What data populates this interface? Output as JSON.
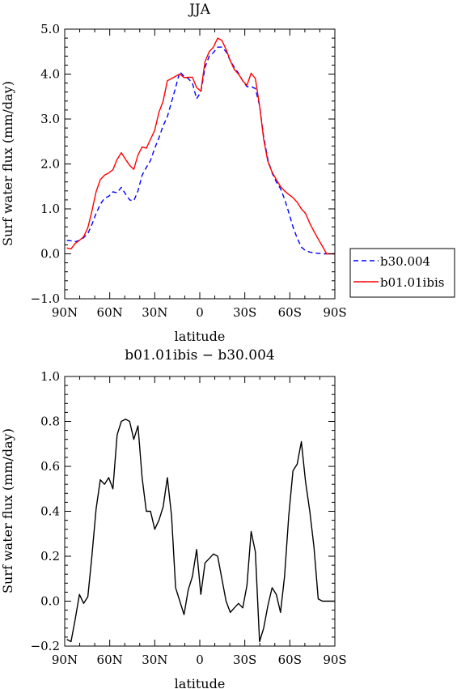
{
  "chart_data": [
    {
      "type": "line",
      "title": "JJA",
      "xlabel": "latitude",
      "ylabel": "Surf water flux (mm/day)",
      "xlim": [
        -90,
        90
      ],
      "ylim": [
        -1.0,
        5.0
      ],
      "x_ticks": [
        {
          "value": -90,
          "label": "90N"
        },
        {
          "value": -60,
          "label": "60N"
        },
        {
          "value": -30,
          "label": "30N"
        },
        {
          "value": 0,
          "label": "0"
        },
        {
          "value": 30,
          "label": "30S"
        },
        {
          "value": 60,
          "label": "60S"
        },
        {
          "value": 90,
          "label": "90S"
        }
      ],
      "y_ticks": [
        {
          "value": -1.0,
          "label": "−1.0"
        },
        {
          "value": 0.0,
          "label": "0.0"
        },
        {
          "value": 1.0,
          "label": "1.0"
        },
        {
          "value": 2.0,
          "label": "2.0"
        },
        {
          "value": 3.0,
          "label": "3.0"
        },
        {
          "value": 4.0,
          "label": "4.0"
        },
        {
          "value": 5.0,
          "label": "5.0"
        }
      ],
      "legend_position": "right",
      "series": [
        {
          "name": "b30.004",
          "color": "#0000ff",
          "dash": "dashed",
          "x": [
            -88.6,
            -85.8,
            -83.0,
            -80.2,
            -77.4,
            -74.6,
            -71.9,
            -69.1,
            -66.3,
            -63.5,
            -60.7,
            -57.9,
            -55.1,
            -52.3,
            -49.5,
            -46.7,
            -44.0,
            -41.2,
            -38.4,
            -35.6,
            -32.8,
            -30.0,
            -27.2,
            -24.4,
            -21.6,
            -18.8,
            -16.1,
            -13.3,
            -10.5,
            -7.7,
            -4.9,
            -2.1,
            0.7,
            3.5,
            6.3,
            9.1,
            11.9,
            14.7,
            17.5,
            20.3,
            23.0,
            25.8,
            28.6,
            31.4,
            34.2,
            37.0,
            39.8,
            42.6,
            45.4,
            48.2,
            51.0,
            53.8,
            56.5,
            59.3,
            62.1,
            64.9,
            67.7,
            70.5,
            73.3,
            76.1,
            78.9,
            81.7,
            84.5,
            87.3,
            90.0
          ],
          "y": [
            0.3,
            0.29,
            0.27,
            0.3,
            0.36,
            0.45,
            0.65,
            0.9,
            1.1,
            1.24,
            1.28,
            1.38,
            1.36,
            1.48,
            1.33,
            1.2,
            1.18,
            1.4,
            1.75,
            1.92,
            2.08,
            2.35,
            2.58,
            2.85,
            3.05,
            3.38,
            3.7,
            4.05,
            3.95,
            3.9,
            3.8,
            3.45,
            3.6,
            4.15,
            4.4,
            4.48,
            4.6,
            4.6,
            4.5,
            4.3,
            4.15,
            4.02,
            3.85,
            3.72,
            3.72,
            3.68,
            3.3,
            2.6,
            2.1,
            1.8,
            1.6,
            1.45,
            1.22,
            0.92,
            0.6,
            0.35,
            0.15,
            0.07,
            0.04,
            0.02,
            0.01,
            0.0,
            0.0,
            0.0,
            0.0
          ]
        },
        {
          "name": "b01.01ibis",
          "color": "#ff0000",
          "dash": "solid",
          "x": [
            -88.6,
            -85.8,
            -83.0,
            -80.2,
            -77.4,
            -74.6,
            -71.9,
            -69.1,
            -66.3,
            -63.5,
            -60.7,
            -57.9,
            -55.1,
            -52.3,
            -49.5,
            -46.7,
            -44.0,
            -41.2,
            -38.4,
            -35.6,
            -32.8,
            -30.0,
            -27.2,
            -24.4,
            -21.6,
            -18.8,
            -16.1,
            -13.3,
            -10.5,
            -7.7,
            -4.9,
            -2.1,
            0.7,
            3.5,
            6.3,
            9.1,
            11.9,
            14.7,
            17.5,
            20.3,
            23.0,
            25.8,
            28.6,
            31.4,
            34.2,
            37.0,
            39.8,
            42.6,
            45.4,
            48.2,
            51.0,
            53.8,
            56.5,
            59.3,
            62.1,
            64.9,
            67.7,
            70.5,
            73.3,
            76.1,
            78.9,
            81.7,
            84.5,
            87.3,
            90.0
          ],
          "y": [
            0.13,
            0.11,
            0.23,
            0.3,
            0.38,
            0.58,
            0.95,
            1.38,
            1.65,
            1.75,
            1.8,
            1.87,
            2.1,
            2.25,
            2.1,
            1.97,
            1.88,
            2.2,
            2.38,
            2.35,
            2.55,
            2.75,
            3.15,
            3.4,
            3.85,
            3.9,
            3.95,
            4.0,
            3.92,
            3.93,
            3.93,
            3.7,
            3.62,
            4.28,
            4.5,
            4.6,
            4.8,
            4.75,
            4.55,
            4.3,
            4.1,
            4.0,
            3.85,
            3.75,
            4.02,
            3.9,
            3.3,
            2.55,
            2.05,
            1.82,
            1.65,
            1.5,
            1.4,
            1.32,
            1.25,
            1.15,
            1.0,
            0.9,
            0.68,
            0.5,
            0.33,
            0.17,
            0.0,
            0.0,
            0.0
          ]
        }
      ]
    },
    {
      "type": "line",
      "title": "b01.01ibis − b30.004",
      "xlabel": "latitude",
      "ylabel": "Surf water flux (mm/day)",
      "xlim": [
        -90,
        90
      ],
      "ylim": [
        -0.2,
        1.0
      ],
      "x_ticks": [
        {
          "value": -90,
          "label": "90N"
        },
        {
          "value": -60,
          "label": "60N"
        },
        {
          "value": -30,
          "label": "30N"
        },
        {
          "value": 0,
          "label": "0"
        },
        {
          "value": 30,
          "label": "30S"
        },
        {
          "value": 60,
          "label": "60S"
        },
        {
          "value": 90,
          "label": "90S"
        }
      ],
      "y_ticks": [
        {
          "value": -0.2,
          "label": "−0.2"
        },
        {
          "value": 0.0,
          "label": "0.0"
        },
        {
          "value": 0.2,
          "label": "0.2"
        },
        {
          "value": 0.4,
          "label": "0.4"
        },
        {
          "value": 0.6,
          "label": "0.6"
        },
        {
          "value": 0.8,
          "label": "0.8"
        },
        {
          "value": 1.0,
          "label": "1.0"
        }
      ],
      "series": [
        {
          "color": "#000000",
          "dash": "solid",
          "x": [
            -88.6,
            -85.8,
            -83.0,
            -80.2,
            -77.4,
            -74.6,
            -71.9,
            -69.1,
            -66.3,
            -63.5,
            -60.7,
            -57.9,
            -55.1,
            -52.3,
            -49.5,
            -46.7,
            -44.0,
            -41.2,
            -38.4,
            -35.6,
            -32.8,
            -30.0,
            -27.2,
            -24.4,
            -21.6,
            -18.8,
            -16.1,
            -13.3,
            -10.5,
            -7.7,
            -4.9,
            -2.1,
            0.7,
            3.5,
            6.3,
            9.1,
            11.9,
            14.7,
            17.5,
            20.3,
            23.0,
            25.8,
            28.6,
            31.4,
            34.2,
            37.0,
            39.8,
            42.6,
            45.4,
            48.2,
            51.0,
            53.8,
            56.5,
            59.3,
            62.1,
            64.9,
            67.7,
            70.5,
            73.3,
            76.1,
            78.9,
            81.7,
            84.5,
            87.3,
            90.0
          ],
          "y": [
            -0.17,
            -0.18,
            -0.08,
            0.03,
            -0.01,
            0.02,
            0.2,
            0.41,
            0.54,
            0.52,
            0.55,
            0.5,
            0.74,
            0.8,
            0.81,
            0.8,
            0.72,
            0.78,
            0.55,
            0.4,
            0.4,
            0.32,
            0.36,
            0.42,
            0.55,
            0.38,
            0.06,
            0.0,
            -0.06,
            0.05,
            0.11,
            0.23,
            0.03,
            0.17,
            0.19,
            0.21,
            0.2,
            0.1,
            0.0,
            -0.05,
            -0.03,
            -0.01,
            -0.03,
            0.07,
            0.31,
            0.22,
            -0.18,
            -0.12,
            -0.02,
            0.06,
            0.03,
            -0.05,
            0.11,
            0.38,
            0.58,
            0.61,
            0.71,
            0.53,
            0.4,
            0.24,
            0.01,
            0.0,
            0.0,
            0.0,
            0.0
          ]
        }
      ]
    }
  ]
}
